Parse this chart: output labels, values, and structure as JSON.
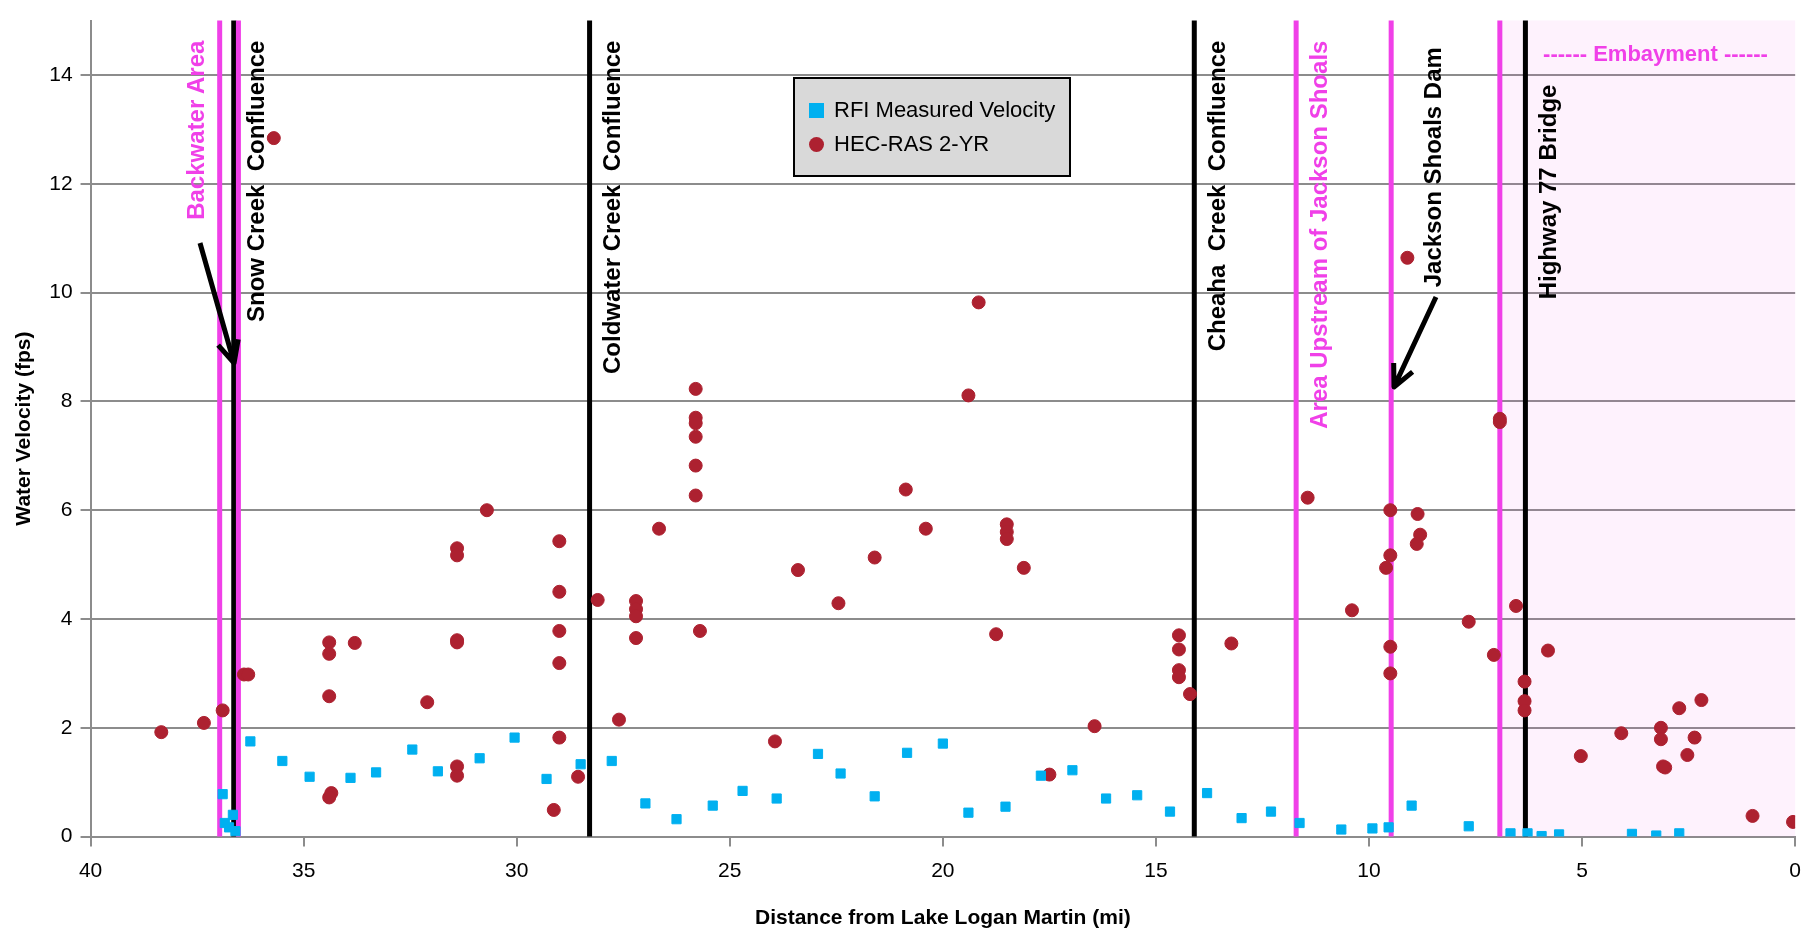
{
  "chart_data": {
    "type": "scatter",
    "xlabel": "Distance from Lake Logan Martin (mi)",
    "ylabel": "Water Velocity (fps)",
    "xlim": [
      40,
      0
    ],
    "xticks": [
      40,
      35,
      30,
      25,
      20,
      15,
      10,
      5,
      0
    ],
    "ylim": [
      0,
      15
    ],
    "yticks": [
      0,
      2,
      4,
      6,
      8,
      10,
      12,
      14
    ],
    "grid": "y",
    "legend": "top",
    "series": [
      {
        "name": "RFI Measured Velocity",
        "color": "#00b0f0",
        "marker": "square",
        "x": [
          36.9,
          36.85,
          36.75,
          36.66,
          36.6,
          36.25,
          35.5,
          34.86,
          33.9,
          33.3,
          32.45,
          31.85,
          30.87,
          30.05,
          29.3,
          28.5,
          27.77,
          26.98,
          26.25,
          25.4,
          24.7,
          23.9,
          22.93,
          22.4,
          21.6,
          20.84,
          20.0,
          19.4,
          18.53,
          17.7,
          16.96,
          16.17,
          15.44,
          14.67,
          13.8,
          12.99,
          12.3,
          11.63,
          10.65,
          9.92,
          9.54,
          9.0,
          7.66,
          6.68,
          6.28,
          5.95,
          5.54,
          3.83,
          3.26,
          2.72
        ],
        "values": [
          0.78,
          0.25,
          0.17,
          0.4,
          0.1,
          1.75,
          1.39,
          1.1,
          1.08,
          1.18,
          1.6,
          1.2,
          1.44,
          1.82,
          1.06,
          1.33,
          1.39,
          0.61,
          0.32,
          0.57,
          0.84,
          0.7,
          1.52,
          1.16,
          0.74,
          1.54,
          1.71,
          0.44,
          0.55,
          1.12,
          1.22,
          0.7,
          0.76,
          0.46,
          0.8,
          0.34,
          0.46,
          0.25,
          0.13,
          0.15,
          0.17,
          0.57,
          0.19,
          0.06,
          0.06,
          0.01,
          0.04,
          0.05,
          0.02,
          0.06
        ]
      },
      {
        "name": "HEC-RAS 2-YR",
        "color": "#ad2130",
        "marker": "circle",
        "x": [
          38.34,
          37.34,
          36.9,
          36.4,
          36.3,
          35.7,
          34.4,
          34.4,
          34.4,
          34.35,
          34.4,
          33.8,
          32.1,
          31.4,
          31.4,
          31.4,
          31.4,
          31.4,
          31.4,
          30.7,
          29.13,
          29.0,
          29.0,
          29.0,
          29.0,
          29.0,
          28.56,
          28.1,
          27.6,
          27.2,
          27.2,
          27.2,
          27.2,
          26.66,
          25.8,
          25.8,
          25.8,
          25.8,
          25.8,
          25.8,
          25.7,
          23.94,
          23.4,
          22.45,
          21.6,
          20.87,
          20.4,
          19.4,
          19.16,
          18.75,
          18.5,
          18.5,
          18.5,
          18.1,
          17.5,
          16.44,
          14.46,
          14.46,
          14.46,
          14.46,
          14.2,
          13.23,
          11.44,
          10.4,
          9.6,
          9.5,
          9.5,
          9.5,
          9.5,
          9.1,
          8.86,
          8.8,
          8.88,
          7.66,
          7.07,
          6.93,
          6.93,
          6.55,
          6.35,
          6.35,
          6.35,
          5.8,
          5.03,
          4.08,
          3.15,
          3.15,
          3.1,
          3.05,
          2.72,
          2.53,
          2.36,
          2.2,
          1.0,
          0.05
        ],
        "values": [
          1.92,
          2.09,
          2.32,
          2.98,
          2.98,
          12.84,
          3.57,
          3.36,
          2.58,
          0.8,
          0.72,
          3.56,
          2.47,
          5.3,
          5.17,
          3.61,
          3.57,
          1.29,
          1.12,
          6.0,
          0.49,
          5.43,
          4.5,
          3.78,
          3.19,
          1.82,
          1.1,
          4.35,
          2.15,
          4.33,
          4.18,
          4.05,
          3.65,
          5.66,
          8.23,
          7.7,
          7.6,
          7.35,
          6.82,
          6.27,
          3.78,
          1.75,
          4.9,
          4.29,
          5.13,
          6.38,
          5.66,
          8.11,
          9.82,
          3.72,
          5.74,
          5.6,
          5.47,
          4.94,
          1.14,
          2.03,
          3.7,
          3.44,
          3.06,
          2.93,
          2.62,
          3.55,
          6.23,
          4.16,
          4.94,
          6.0,
          5.17,
          3.49,
          3.0,
          10.64,
          5.93,
          5.55,
          5.38,
          3.95,
          3.34,
          7.68,
          7.62,
          4.24,
          2.85,
          2.49,
          2.32,
          3.42,
          1.48,
          1.9,
          2.0,
          1.79,
          1.29,
          1.27,
          2.36,
          1.5,
          1.82,
          2.51,
          0.38,
          0.27
        ]
      }
    ],
    "ref_lines": [
      {
        "axis": "x",
        "value": 36.97,
        "label": "Backwater Area",
        "color": "#f040e8"
      },
      {
        "axis": "x",
        "value": 36.64,
        "label": "Snow Creek  Confluence",
        "color": "#000000"
      },
      {
        "axis": "x",
        "value": 36.53,
        "label": null,
        "color": "#f040e8"
      },
      {
        "axis": "x",
        "value": 28.29,
        "label": "Coldwater Creek  Confluence",
        "color": "#000000"
      },
      {
        "axis": "x",
        "value": 14.1,
        "label": "Cheaha  Creek  Confluence",
        "color": "#000000"
      },
      {
        "axis": "x",
        "value": 11.71,
        "label": "Area Upstream of Jackson Shoals",
        "color": "#f040e8"
      },
      {
        "axis": "x",
        "value": 9.48,
        "label": null,
        "color": "#f040e8"
      },
      {
        "axis": "x",
        "value": 6.93,
        "label": null,
        "color": "#f040e8"
      },
      {
        "axis": "x",
        "value": 6.33,
        "label": "Highway 77 Bridge",
        "color": "#000000"
      }
    ],
    "bands": [
      {
        "axis": "x",
        "from": 6.93,
        "to": 0,
        "label": "------ Embayment ------",
        "color": "#f040e8"
      }
    ],
    "annotations": [
      {
        "text": "Jackson Shoals Dam",
        "x": 9.48,
        "y": 8.26
      }
    ]
  }
}
